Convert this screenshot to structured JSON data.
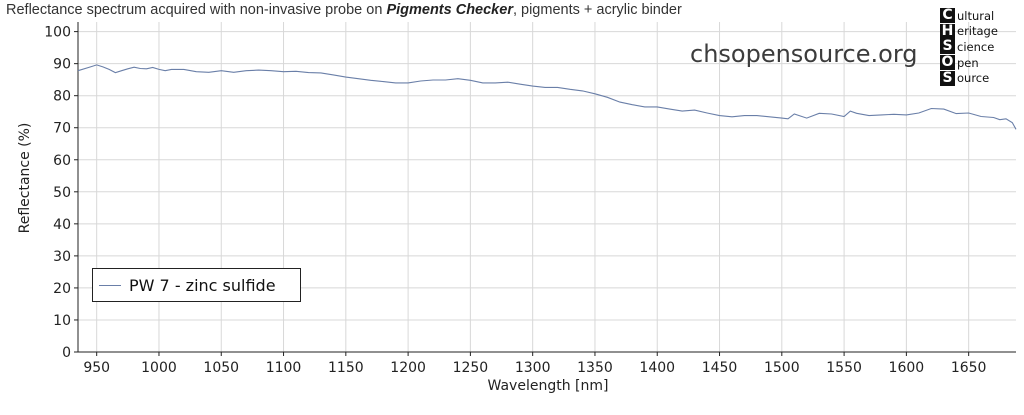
{
  "title": {
    "prefix": "Reflectance spectrum acquired with non-invasive probe on ",
    "emphasis": "Pigments Checker",
    "suffix": ", pigments + acrylic binder"
  },
  "watermark": "chsopensource.org",
  "logo": {
    "letters": [
      "C",
      "H",
      "S",
      "O",
      "S"
    ],
    "rests": [
      "ultural",
      "eritage",
      "cience",
      "pen",
      "ource"
    ]
  },
  "colors": {
    "series": "#6a7fa8",
    "grid": "#d8d8d8",
    "axis": "#222222"
  },
  "chart_data": {
    "type": "line",
    "title": "Reflectance spectrum acquired with non-invasive probe on Pigments Checker, pigments + acrylic binder",
    "xlabel": "Wavelength [nm]",
    "ylabel": "Reflectance (%)",
    "xlim": [
      935,
      1688
    ],
    "ylim": [
      0,
      103
    ],
    "xticks": [
      950,
      1000,
      1050,
      1100,
      1150,
      1200,
      1250,
      1300,
      1350,
      1400,
      1450,
      1500,
      1550,
      1600,
      1650
    ],
    "yticks": [
      0,
      10,
      20,
      30,
      40,
      50,
      60,
      70,
      80,
      90,
      100
    ],
    "grid": true,
    "legend_position": "bottom-left",
    "series": [
      {
        "name": "PW 7 - zinc sulfide",
        "color": "#6a7fa8",
        "x": [
          935,
          945,
          950,
          955,
          960,
          965,
          970,
          975,
          980,
          985,
          990,
          995,
          1000,
          1005,
          1010,
          1020,
          1030,
          1040,
          1050,
          1060,
          1070,
          1080,
          1090,
          1100,
          1110,
          1120,
          1130,
          1140,
          1150,
          1160,
          1170,
          1180,
          1190,
          1200,
          1210,
          1220,
          1230,
          1240,
          1250,
          1260,
          1270,
          1280,
          1290,
          1300,
          1310,
          1320,
          1330,
          1340,
          1350,
          1360,
          1370,
          1380,
          1390,
          1400,
          1410,
          1420,
          1430,
          1440,
          1450,
          1460,
          1470,
          1480,
          1490,
          1500,
          1505,
          1510,
          1520,
          1530,
          1540,
          1550,
          1555,
          1560,
          1570,
          1580,
          1590,
          1600,
          1610,
          1620,
          1630,
          1640,
          1650,
          1660,
          1670,
          1675,
          1680,
          1685,
          1688
        ],
        "y": [
          87.8,
          89.0,
          89.6,
          89.0,
          88.2,
          87.2,
          87.8,
          88.4,
          88.9,
          88.5,
          88.4,
          88.8,
          88.2,
          87.8,
          88.2,
          88.2,
          87.5,
          87.3,
          87.8,
          87.3,
          87.8,
          88.0,
          87.8,
          87.5,
          87.6,
          87.2,
          87.1,
          86.5,
          85.8,
          85.3,
          84.8,
          84.4,
          84.0,
          84.0,
          84.6,
          84.9,
          84.9,
          85.3,
          84.8,
          84.0,
          84.0,
          84.2,
          83.6,
          83.0,
          82.6,
          82.6,
          82.0,
          81.5,
          80.6,
          79.5,
          78.0,
          77.2,
          76.5,
          76.5,
          75.8,
          75.2,
          75.5,
          74.6,
          73.8,
          73.4,
          73.8,
          73.8,
          73.4,
          73.0,
          72.8,
          74.3,
          73.0,
          74.5,
          74.3,
          73.5,
          75.2,
          74.5,
          73.8,
          74.0,
          74.2,
          74.0,
          74.6,
          76.0,
          75.8,
          74.4,
          74.6,
          73.5,
          73.2,
          72.5,
          72.8,
          71.6,
          69.5
        ]
      }
    ]
  }
}
